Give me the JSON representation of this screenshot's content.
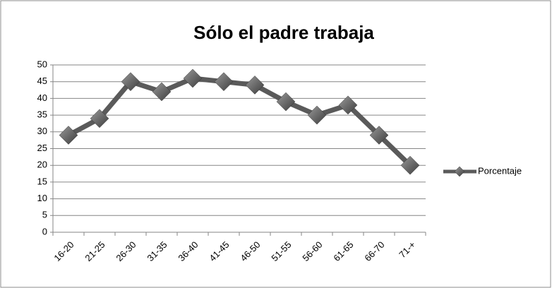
{
  "chart_data": {
    "type": "line",
    "title": "Sólo el padre trabaja",
    "categories": [
      "16-20",
      "21-25",
      "26-30",
      "31-35",
      "36-40",
      "41-45",
      "46-50",
      "51-55",
      "56-60",
      "61-65",
      "66-70",
      "71-+"
    ],
    "series": [
      {
        "name": "Porcentaje",
        "color": "#5a5a5a",
        "values": [
          29,
          34,
          45,
          42,
          46,
          45,
          44,
          39,
          35,
          38,
          29,
          20
        ]
      }
    ],
    "ylim": [
      0,
      50
    ],
    "yticks": [
      0,
      5,
      10,
      15,
      20,
      25,
      30,
      35,
      40,
      45,
      50
    ],
    "grid": true,
    "legend": "right"
  }
}
